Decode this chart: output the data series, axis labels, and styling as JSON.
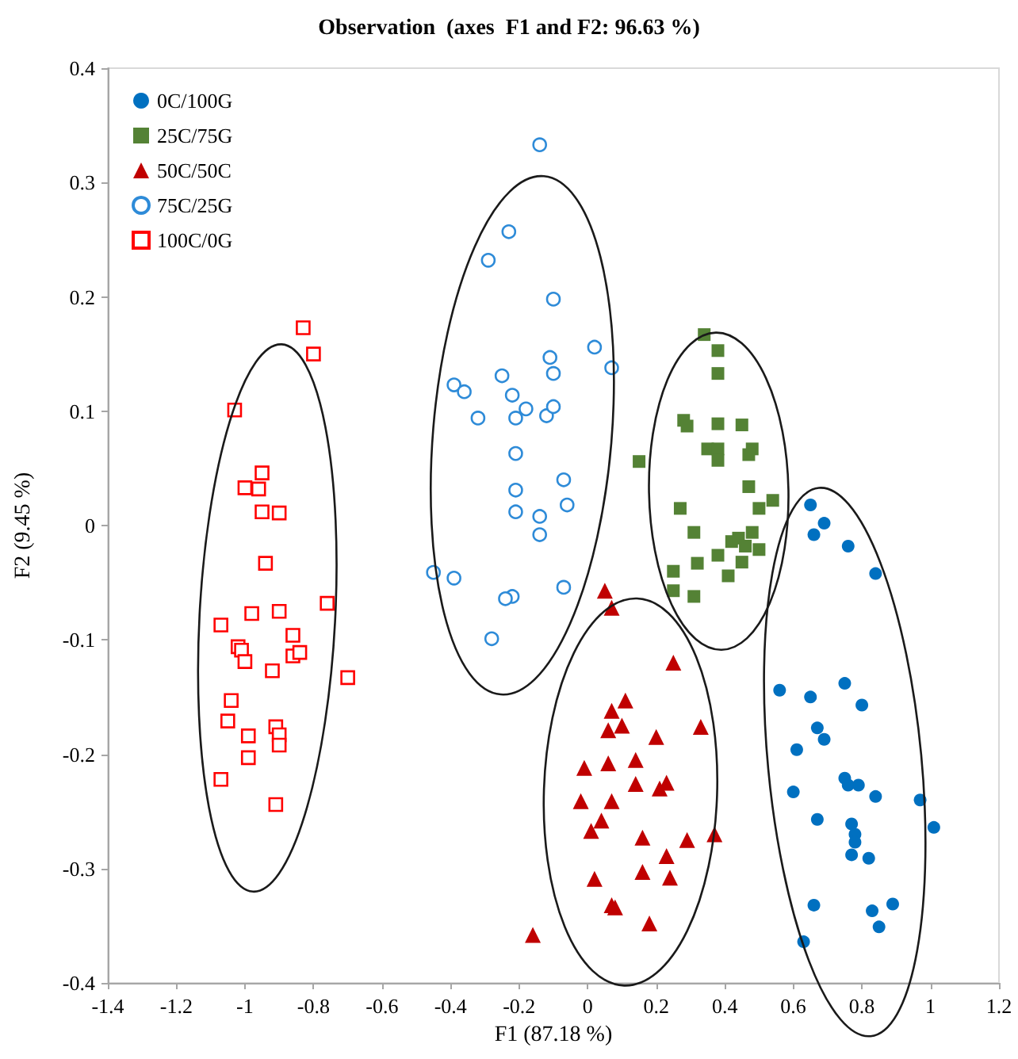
{
  "chart_data": {
    "type": "scatter",
    "title": "Observation  (axes  F1 and F2: 96.63 %)",
    "xlabel": "F1 (87.18 %)",
    "ylabel": "F2 (9.45 %)",
    "xlim": [
      -1.4,
      1.2
    ],
    "xticks": [
      -1.4,
      -1.2,
      -1,
      -0.8,
      -0.6,
      -0.4,
      -0.2,
      0,
      0.2,
      0.4,
      0.6,
      0.8,
      1,
      1.2
    ],
    "ylim": [
      -0.4,
      0.4
    ],
    "yticks": [
      -0.4,
      -0.3,
      -0.2,
      -0.1,
      0,
      0.1,
      0.2,
      0.3,
      0.4
    ],
    "grid": false,
    "legend": "top left",
    "series": [
      {
        "name": "0C/100G",
        "color": "#0070c0",
        "marker": "circle",
        "x": [
          0.65,
          0.69,
          0.66,
          0.76,
          0.84,
          0.56,
          0.65,
          0.75,
          0.8,
          0.67,
          0.69,
          0.61,
          0.6,
          0.75,
          0.76,
          0.79,
          0.84,
          0.97,
          1.01,
          0.67,
          0.77,
          0.78,
          0.78,
          0.77,
          0.82,
          0.66,
          0.83,
          0.89,
          0.85,
          0.63
        ],
        "values": [
          0.018,
          0.002,
          -0.008,
          -0.018,
          -0.042,
          -0.144,
          -0.15,
          -0.138,
          -0.157,
          -0.177,
          -0.187,
          -0.196,
          -0.233,
          -0.221,
          -0.227,
          -0.227,
          -0.237,
          -0.24,
          -0.264,
          -0.257,
          -0.261,
          -0.27,
          -0.277,
          -0.288,
          -0.291,
          -0.332,
          -0.337,
          -0.331,
          -0.351,
          -0.364
        ]
      },
      {
        "name": "25C/75G",
        "color": "#548235",
        "marker": "square",
        "x": [
          0.34,
          0.38,
          0.38,
          0.28,
          0.29,
          0.38,
          0.45,
          0.35,
          0.38,
          0.38,
          0.48,
          0.47,
          0.15,
          0.47,
          0.27,
          0.5,
          0.54,
          0.31,
          0.48,
          0.42,
          0.44,
          0.46,
          0.5,
          0.38,
          0.32,
          0.45,
          0.25,
          0.41,
          0.25,
          0.31
        ],
        "values": [
          0.167,
          0.153,
          0.133,
          0.092,
          0.087,
          0.089,
          0.088,
          0.067,
          0.067,
          0.057,
          0.067,
          0.062,
          0.056,
          0.034,
          0.015,
          0.015,
          0.022,
          -0.006,
          -0.006,
          -0.014,
          -0.011,
          -0.018,
          -0.021,
          -0.026,
          -0.033,
          -0.032,
          -0.04,
          -0.044,
          -0.057,
          -0.062
        ]
      },
      {
        "name": "50C/50C",
        "color": "#c00000",
        "marker": "triangle",
        "x": [
          0.05,
          0.07,
          0.25,
          0.11,
          0.07,
          0.06,
          0.1,
          0.33,
          0.2,
          -0.01,
          0.06,
          0.14,
          0.14,
          0.21,
          0.23,
          -0.02,
          0.07,
          0.04,
          0.01,
          0.16,
          0.29,
          0.37,
          0.23,
          0.02,
          0.16,
          0.24,
          0.07,
          0.08,
          0.18,
          -0.16
        ],
        "values": [
          -0.057,
          -0.072,
          -0.12,
          -0.153,
          -0.162,
          -0.179,
          -0.175,
          -0.176,
          -0.185,
          -0.212,
          -0.208,
          -0.205,
          -0.226,
          -0.23,
          -0.225,
          -0.241,
          -0.241,
          -0.258,
          -0.267,
          -0.273,
          -0.275,
          -0.27,
          -0.289,
          -0.309,
          -0.303,
          -0.308,
          -0.332,
          -0.334,
          -0.348,
          -0.358
        ]
      },
      {
        "name": "75C/25G",
        "color": "#2e8bd8",
        "marker": "circle",
        "x": [
          -0.14,
          -0.23,
          -0.29,
          -0.1,
          0.02,
          0.07,
          -0.11,
          -0.1,
          -0.25,
          -0.39,
          -0.36,
          -0.22,
          -0.18,
          -0.21,
          -0.12,
          -0.1,
          -0.32,
          -0.21,
          -0.07,
          -0.21,
          -0.06,
          -0.21,
          -0.14,
          -0.14,
          -0.45,
          -0.39,
          -0.07,
          -0.22,
          -0.24,
          -0.28
        ],
        "values": [
          0.333,
          0.257,
          0.232,
          0.198,
          0.156,
          0.138,
          0.147,
          0.133,
          0.131,
          0.123,
          0.117,
          0.114,
          0.102,
          0.094,
          0.096,
          0.104,
          0.094,
          0.063,
          0.04,
          0.031,
          0.018,
          0.012,
          0.008,
          -0.008,
          -0.041,
          -0.046,
          -0.054,
          -0.062,
          -0.064,
          -0.099
        ]
      },
      {
        "name": "100C/0G",
        "color": "#ff0000",
        "marker": "square",
        "x": [
          -0.83,
          -0.8,
          -1.03,
          -0.95,
          -1.0,
          -0.96,
          -0.95,
          -0.9,
          -0.94,
          -0.76,
          -0.98,
          -0.9,
          -1.07,
          -0.86,
          -1.02,
          -1.01,
          -0.86,
          -0.84,
          -1.0,
          -0.92,
          -0.7,
          -1.04,
          -1.05,
          -0.91,
          -0.9,
          -0.99,
          -0.9,
          -0.99,
          -1.07,
          -0.91
        ],
        "values": [
          0.173,
          0.15,
          0.101,
          0.046,
          0.033,
          0.032,
          0.012,
          0.011,
          -0.033,
          -0.068,
          -0.077,
          -0.075,
          -0.087,
          -0.096,
          -0.106,
          -0.109,
          -0.114,
          -0.111,
          -0.119,
          -0.127,
          -0.133,
          -0.153,
          -0.171,
          -0.176,
          -0.183,
          -0.184,
          -0.192,
          -0.203,
          -0.222,
          -0.244
        ]
      }
    ]
  }
}
